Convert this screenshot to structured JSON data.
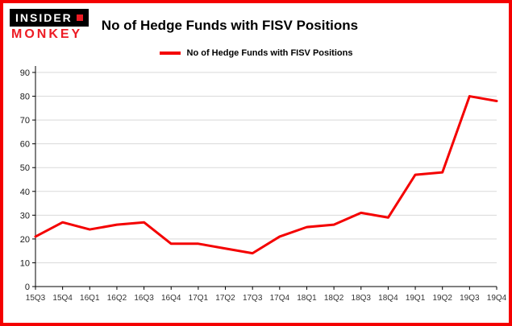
{
  "branding": {
    "logo_line1": "INSIDER",
    "logo_line2": "MONKEY"
  },
  "colors": {
    "border": "#f40000",
    "line": "#f40000",
    "brand_red": "#ed1b24",
    "grid": "#d9d9d9"
  },
  "header": {
    "title": "No of Hedge Funds with FISV Positions"
  },
  "legend": {
    "label": "No of Hedge Funds with FISV Positions",
    "color": "#f40000"
  },
  "chart_data": {
    "type": "line",
    "title": "No of Hedge Funds with FISV Positions",
    "categories": [
      "15Q3",
      "15Q4",
      "16Q1",
      "16Q2",
      "16Q3",
      "16Q4",
      "17Q1",
      "17Q2",
      "17Q3",
      "17Q4",
      "18Q1",
      "18Q2",
      "18Q3",
      "18Q4",
      "19Q1",
      "19Q2",
      "19Q3",
      "19Q4"
    ],
    "values": [
      21,
      27,
      24,
      26,
      27,
      18,
      18,
      16,
      14,
      21,
      25,
      26,
      31,
      29,
      47,
      48,
      80,
      78
    ],
    "xlabel": "",
    "ylabel": "",
    "ylim": [
      0,
      90
    ],
    "yticks": [
      0,
      10,
      20,
      30,
      40,
      50,
      60,
      70,
      80,
      90
    ],
    "grid": true,
    "legend_position": "top",
    "line_color": "#f40000",
    "line_width": 3
  }
}
